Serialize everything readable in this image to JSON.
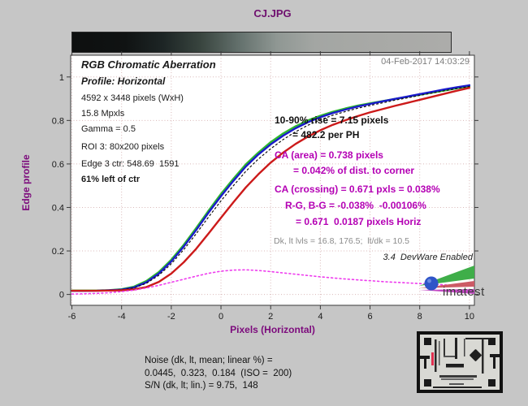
{
  "title": "CJ.JPG",
  "timestamp": "04-Feb-2017 14:03:29",
  "info_block": {
    "heading": "RGB Chromatic Aberration",
    "subheading": "Profile: Horizontal",
    "resolution": "4592 x 3448 pixels (WxH)",
    "megapixels": "15.8 Mpxls",
    "gamma": "Gamma = 0.5",
    "roi": "ROI 3: 80x200 pixels",
    "edge_center": "Edge 3 ctr: 548.69  1591",
    "edge_position": "61% left of ctr"
  },
  "annotations": {
    "rise_line1": "10-90% rise = 7.15 pixels",
    "rise_line2": "= 482.2 per PH",
    "ca_area_line1": "CA (area) = 0.738 pixels",
    "ca_area_line2": "= 0.042% of dist. to corner",
    "ca_crossing": "CA (crossing) = 0.671 pxls = 0.038%",
    "ca_rg_bg": "R-G, B-G = -0.038%  -0.00106%",
    "ca_pixels": "= 0.671  0.0187 pixels Horiz",
    "levels": "Dk, lt lvls = 16.8, 176.5;  lt/dk = 10.5",
    "devware": "3.4  DevWare Enabled"
  },
  "footer": {
    "line1": "Noise (dk, lt, mean; linear %) =",
    "line2": "0.0445,  0.323,  0.184  (ISO =  200)",
    "line3": "S/N (dk, lt; lin.) = 9.75,  148"
  },
  "branding": {
    "logo_text": "imatest"
  },
  "colors": {
    "background": "#c6c6c6",
    "plot_background": "#ffffff",
    "title_purple": "#6e0f6e",
    "axis_label_purple": "#7c0a7c",
    "ca_magenta_text": "#b400b4",
    "gray_text": "#7d7d7d",
    "red_curve": "#cc1a1a",
    "green_curve": "#2eb82e",
    "blue_curve": "#1a1acc",
    "luminance_dotted": "#101010",
    "ca_dotted_magenta": "#ee3cee",
    "grid_pink": "#d9b8b8"
  },
  "chart_data": {
    "type": "line",
    "title": "CJ.JPG",
    "xlabel": "Pixels (Horizontal)",
    "ylabel": "Edge profile",
    "xlim": [
      -6.05,
      10.2
    ],
    "ylim": [
      -0.05,
      1.1
    ],
    "xticks": [
      -6,
      -4,
      -2,
      0,
      2,
      4,
      6,
      8,
      10
    ],
    "yticks": [
      0,
      0.2,
      0.4,
      0.6,
      0.8,
      1
    ],
    "grid": true,
    "legend": "none",
    "x": [
      -6,
      -5.5,
      -5,
      -4.5,
      -4,
      -3.5,
      -3,
      -2.5,
      -2,
      -1.5,
      -1,
      -0.5,
      0,
      0.5,
      1,
      1.5,
      2,
      2.5,
      3,
      3.5,
      4,
      4.5,
      5,
      5.5,
      6,
      6.5,
      7,
      7.5,
      8,
      8.5,
      9,
      9.5,
      10
    ],
    "series": [
      {
        "name": "green-edge-profile",
        "color": "#2eb82e",
        "style": "solid",
        "width": 2.4,
        "values": [
          0.018,
          0.018,
          0.018,
          0.02,
          0.024,
          0.036,
          0.062,
          0.103,
          0.16,
          0.228,
          0.305,
          0.385,
          0.462,
          0.532,
          0.598,
          0.652,
          0.7,
          0.74,
          0.773,
          0.8,
          0.822,
          0.84,
          0.855,
          0.868,
          0.879,
          0.889,
          0.899,
          0.909,
          0.918,
          0.928,
          0.938,
          0.948,
          0.957
        ]
      },
      {
        "name": "blue-edge-profile",
        "color": "#1a1acc",
        "style": "solid",
        "width": 2.4,
        "values": [
          0.016,
          0.016,
          0.017,
          0.019,
          0.022,
          0.032,
          0.056,
          0.096,
          0.152,
          0.22,
          0.296,
          0.376,
          0.452,
          0.522,
          0.588,
          0.643,
          0.69,
          0.73,
          0.764,
          0.792,
          0.815,
          0.834,
          0.85,
          0.864,
          0.876,
          0.888,
          0.899,
          0.91,
          0.921,
          0.932,
          0.943,
          0.953,
          0.962
        ]
      },
      {
        "name": "luminance-edge-profile",
        "color": "#101010",
        "style": "dotted",
        "width": 1.2,
        "values": [
          0.017,
          0.017,
          0.017,
          0.019,
          0.022,
          0.03,
          0.051,
          0.088,
          0.141,
          0.206,
          0.279,
          0.356,
          0.43,
          0.5,
          0.566,
          0.622,
          0.67,
          0.712,
          0.748,
          0.778,
          0.803,
          0.824,
          0.841,
          0.856,
          0.869,
          0.881,
          0.893,
          0.904,
          0.915,
          0.926,
          0.937,
          0.947,
          0.956
        ]
      },
      {
        "name": "red-edge-profile",
        "color": "#cc1a1a",
        "style": "solid",
        "width": 2.4,
        "values": [
          0.017,
          0.017,
          0.017,
          0.018,
          0.019,
          0.023,
          0.034,
          0.058,
          0.096,
          0.148,
          0.21,
          0.28,
          0.352,
          0.424,
          0.492,
          0.552,
          0.606,
          0.652,
          0.692,
          0.726,
          0.755,
          0.78,
          0.801,
          0.82,
          0.837,
          0.852,
          0.867,
          0.881,
          0.895,
          0.909,
          0.923,
          0.937,
          0.95
        ]
      },
      {
        "name": "chromatic-aberration-curve",
        "color": "#ee3cee",
        "style": "dotted",
        "width": 1.6,
        "values": [
          0.002,
          0.003,
          0.005,
          0.008,
          0.013,
          0.02,
          0.03,
          0.042,
          0.056,
          0.07,
          0.084,
          0.097,
          0.107,
          0.112,
          0.113,
          0.11,
          0.105,
          0.099,
          0.093,
          0.087,
          0.081,
          0.076,
          0.071,
          0.067,
          0.063,
          0.059,
          0.056,
          0.053,
          0.05,
          0.047,
          0.044,
          0.041,
          0.038
        ]
      }
    ]
  }
}
